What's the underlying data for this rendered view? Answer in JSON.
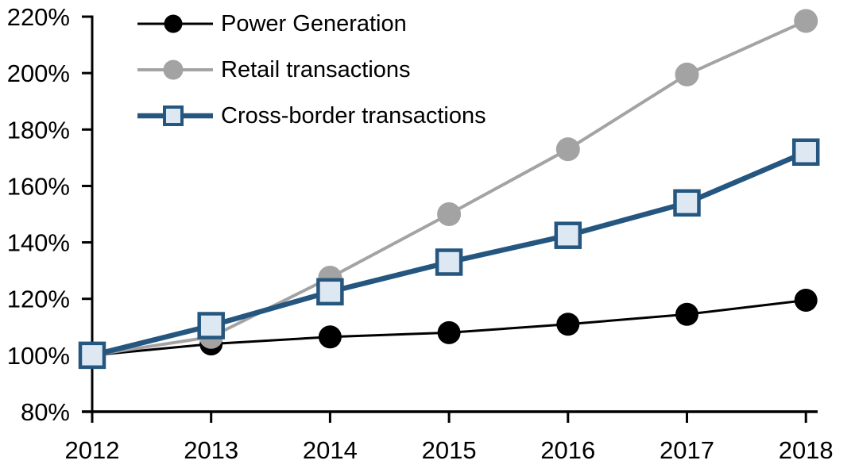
{
  "chart_data": {
    "type": "line",
    "title": "",
    "xlabel": "",
    "ylabel": "",
    "grid": false,
    "background": "#ffffff",
    "axis_color": "#000000",
    "legend_position": "top-left",
    "x": [
      2012,
      2013,
      2014,
      2015,
      2016,
      2017,
      2018
    ],
    "x_tick_labels": [
      "2012",
      "2013",
      "2014",
      "2015",
      "2016",
      "2017",
      "2018"
    ],
    "ylim": [
      80,
      220
    ],
    "y_ticks": [
      80,
      100,
      120,
      140,
      160,
      180,
      200,
      220
    ],
    "y_tick_labels": [
      "80%",
      "100%",
      "120%",
      "140%",
      "160%",
      "180%",
      "200%",
      "220%"
    ],
    "y_unit": "%",
    "series": [
      {
        "name": "Power Generation",
        "color": "#000000",
        "marker": "circle",
        "marker_fill": "#000000",
        "marker_size": 29,
        "line_width": 3,
        "values": [
          100,
          104,
          106.5,
          108,
          111,
          114.5,
          119.5
        ]
      },
      {
        "name": "Retail transactions",
        "color": "#a3a3a3",
        "marker": "circle",
        "marker_fill": "#a3a3a3",
        "marker_size": 30,
        "line_width": 4,
        "values": [
          100,
          106.5,
          127.5,
          150,
          173,
          199.5,
          218.5
        ]
      },
      {
        "name": "Cross-border transactions",
        "color": "#24567f",
        "marker": "square",
        "marker_fill": "#dee8f3",
        "marker_size": 30,
        "marker_border_width": 4.5,
        "line_width": 6.5,
        "values": [
          100,
          110.5,
          122.5,
          133,
          142.5,
          154,
          172
        ]
      }
    ]
  }
}
